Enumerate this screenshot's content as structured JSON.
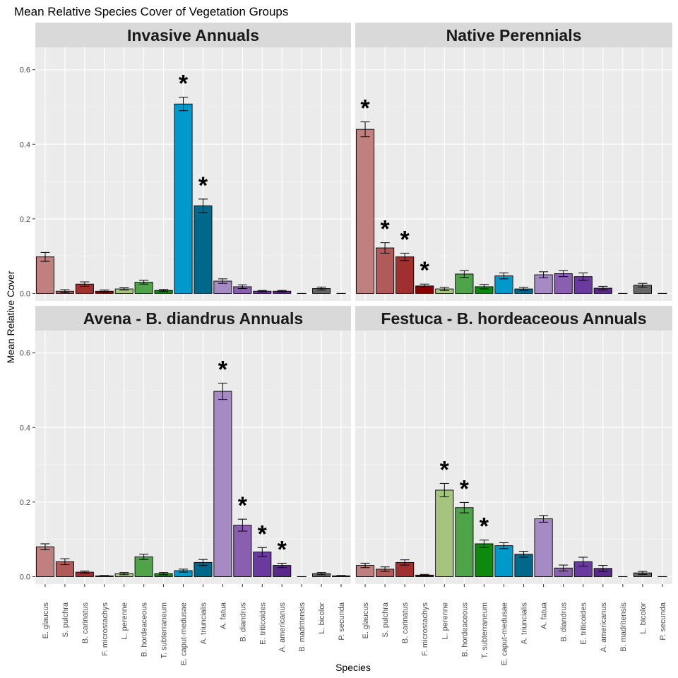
{
  "title": "Mean Relative Species Cover of Vegetation Groups",
  "chart_data": {
    "type": "bar",
    "title": "Mean Relative Species Cover of Vegetation Groups",
    "xlabel": "Species",
    "ylabel": "Mean Relative Cover",
    "ylim": [
      -0.02,
      0.66
    ],
    "yticks": [
      "0.0",
      "0.2",
      "0.4",
      "0.6"
    ],
    "categories": [
      "E. glaucus",
      "S. pulchra",
      "B. carinatus",
      "F. microstachys",
      "L. perenne",
      "B. hordeaceous",
      "T. subterraneum",
      "E. caput-medusae",
      "A. triuncialis",
      "A. fatua",
      "B. diandrus",
      "E. triticoides",
      "A. americanus",
      "B. madritensis",
      "L. bicolor",
      "P. secunda"
    ],
    "colors": [
      "#c08080",
      "#b05a5a",
      "#a03030",
      "#8b0000",
      "#a6c47f",
      "#4fa44a",
      "#0d8a0d",
      "#0099cc",
      "#00688b",
      "#a68ac4",
      "#8b5fb0",
      "#6b3a9e",
      "#5a2a8a",
      "#3d3d3d",
      "#666666",
      "#1a1a1a"
    ],
    "annotation_symbol": "*",
    "grid": true,
    "panels": [
      {
        "name": "Invasive Annuals",
        "values": [
          0.098,
          0.006,
          0.025,
          0.006,
          0.012,
          0.03,
          0.008,
          0.508,
          0.235,
          0.033,
          0.018,
          0.006,
          0.006,
          0.0,
          0.013,
          0.0
        ],
        "errors": [
          0.012,
          0.004,
          0.006,
          0.003,
          0.003,
          0.005,
          0.003,
          0.018,
          0.018,
          0.006,
          0.005,
          0.002,
          0.002,
          0.0,
          0.004,
          0.0
        ],
        "starred": [
          7,
          8
        ]
      },
      {
        "name": "Native Perennials",
        "values": [
          0.44,
          0.122,
          0.098,
          0.02,
          0.012,
          0.052,
          0.018,
          0.047,
          0.012,
          0.05,
          0.053,
          0.045,
          0.014,
          0.0,
          0.022,
          0.0
        ],
        "errors": [
          0.02,
          0.014,
          0.01,
          0.005,
          0.004,
          0.009,
          0.006,
          0.008,
          0.004,
          0.008,
          0.008,
          0.01,
          0.005,
          0.0,
          0.005,
          0.0
        ],
        "starred": [
          0,
          1,
          2,
          3
        ]
      },
      {
        "name": "Avena - B. diandrus Annuals",
        "values": [
          0.08,
          0.04,
          0.012,
          0.002,
          0.008,
          0.053,
          0.008,
          0.016,
          0.038,
          0.497,
          0.138,
          0.066,
          0.03,
          0.0,
          0.008,
          0.002
        ],
        "errors": [
          0.008,
          0.008,
          0.003,
          0.001,
          0.003,
          0.007,
          0.003,
          0.004,
          0.008,
          0.022,
          0.016,
          0.012,
          0.006,
          0.0,
          0.003,
          0.001
        ],
        "starred": [
          9,
          10,
          11,
          12
        ]
      },
      {
        "name": "Festuca - B. hordeaceous Annuals",
        "values": [
          0.03,
          0.02,
          0.038,
          0.004,
          0.232,
          0.185,
          0.088,
          0.083,
          0.06,
          0.155,
          0.023,
          0.04,
          0.022,
          0.0,
          0.01,
          0.0
        ],
        "errors": [
          0.006,
          0.006,
          0.007,
          0.002,
          0.018,
          0.014,
          0.01,
          0.008,
          0.008,
          0.009,
          0.008,
          0.012,
          0.008,
          0.0,
          0.004,
          0.0
        ],
        "starred": [
          4,
          5,
          6
        ]
      }
    ]
  }
}
